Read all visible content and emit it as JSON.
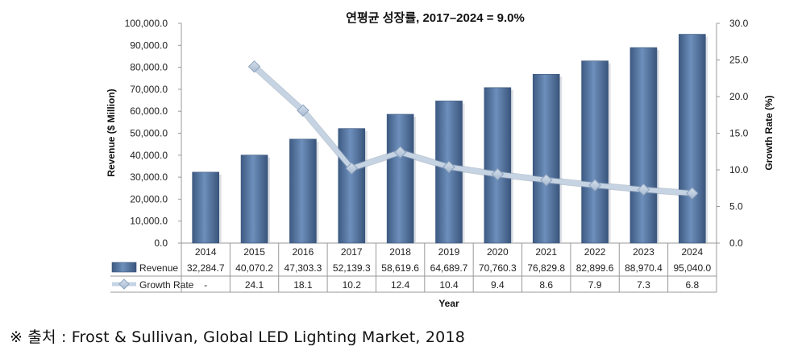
{
  "chart_data": {
    "type": "bar",
    "title": "연평균 성장률, 2017–2024 = 9.0%",
    "xlabel": "Year",
    "ylabel": "Revenue ($ Million)",
    "y2label": "Growth Rate (%)",
    "categories": [
      "2014",
      "2015",
      "2016",
      "2017",
      "2018",
      "2019",
      "2020",
      "2021",
      "2022",
      "2023",
      "2024"
    ],
    "ylim": [
      0,
      100000
    ],
    "y2lim": [
      0,
      30
    ],
    "yticks": [
      "0.0",
      "10,000.0",
      "20,000.0",
      "30,000.0",
      "40,000.0",
      "50,000.0",
      "60,000.0",
      "70,000.0",
      "80,000.0",
      "90,000.0",
      "100,000.0"
    ],
    "y2ticks": [
      "0.0",
      "5.0",
      "10.0",
      "15.0",
      "20.0",
      "25.0",
      "30.0"
    ],
    "series": [
      {
        "name": "Revenue",
        "type": "bar",
        "axis": "left",
        "color": "#4f6f9a",
        "values": [
          32284.7,
          40070.2,
          47303.3,
          52139.3,
          58619.6,
          64689.7,
          70760.3,
          76829.8,
          82899.6,
          88970.4,
          95040.0
        ],
        "labels": [
          "32,284.7",
          "40,070.2",
          "47,303.3",
          "52,139.3",
          "58,619.6",
          "64,689.7",
          "70,760.3",
          "76,829.8",
          "82,899.6",
          "88,970.4",
          "95,040.0"
        ]
      },
      {
        "name": "Growth Rate",
        "type": "line",
        "axis": "right",
        "color": "#b9c9dc",
        "values": [
          null,
          24.1,
          18.1,
          10.2,
          12.4,
          10.4,
          9.4,
          8.6,
          7.9,
          7.3,
          6.8
        ],
        "labels": [
          "-",
          "24.1",
          "18.1",
          "10.2",
          "12.4",
          "10.4",
          "9.4",
          "8.6",
          "7.9",
          "7.3",
          "6.8"
        ]
      }
    ],
    "grid": false,
    "legend": "data-table-left"
  },
  "source_text": "※ 출처 : Frost & Sullivan, Global LED Lighting Market, 2018"
}
